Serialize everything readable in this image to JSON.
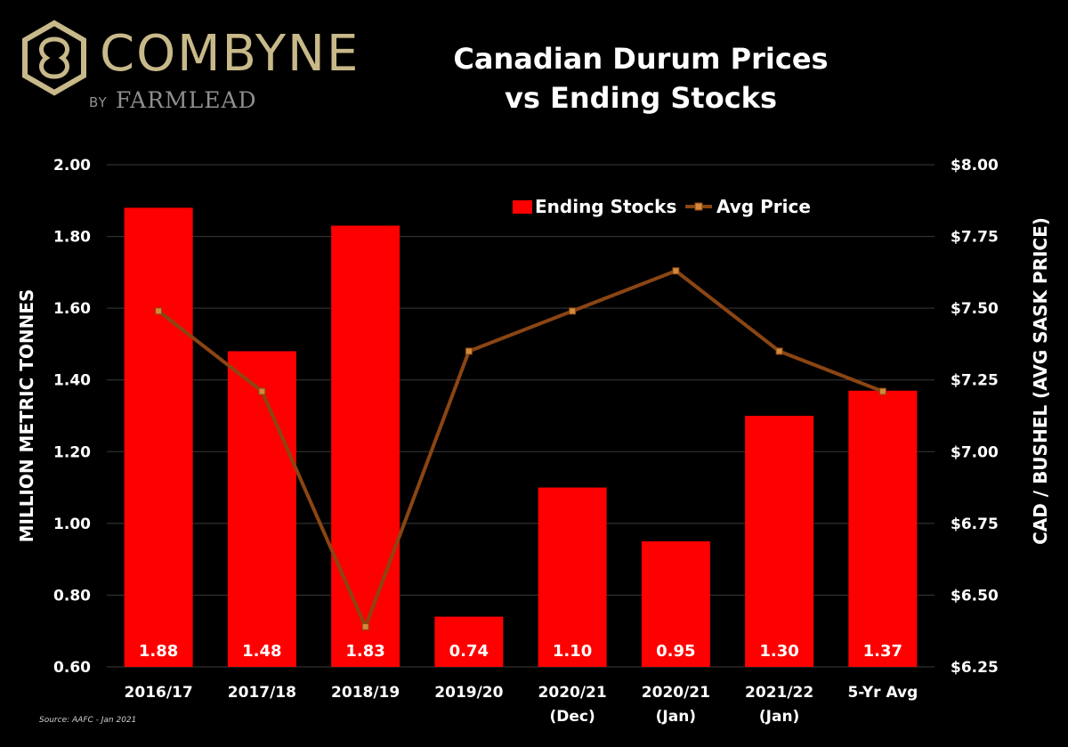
{
  "brand": {
    "name": "COMBYNE",
    "by": "BY",
    "partner": "FARMLEAD",
    "color": "#c8b98a"
  },
  "chart_data": {
    "type": "bar+line",
    "title_line1": "Canadian Durum Prices",
    "title_line2": "vs Ending Stocks",
    "categories": [
      [
        "2016/17"
      ],
      [
        "2017/18"
      ],
      [
        "2018/19"
      ],
      [
        "2019/20"
      ],
      [
        "2020/21",
        "(Dec)"
      ],
      [
        "2020/21",
        "(Jan)"
      ],
      [
        "2021/22",
        "(Jan)"
      ],
      [
        "5-Yr Avg"
      ]
    ],
    "series": [
      {
        "name": "Ending Stocks",
        "type": "bar",
        "axis": "left",
        "color": "#ff0000",
        "values": [
          1.88,
          1.48,
          1.83,
          0.74,
          1.1,
          0.95,
          1.3,
          1.37
        ],
        "labels": [
          "1.88",
          "1.48",
          "1.83",
          "0.74",
          "1.10",
          "0.95",
          "1.30",
          "1.37"
        ]
      },
      {
        "name": "Avg Price",
        "type": "line",
        "axis": "right",
        "color": "#8b4513",
        "values": [
          7.49,
          7.21,
          6.39,
          7.35,
          7.49,
          7.63,
          7.35,
          7.21
        ]
      }
    ],
    "y_left": {
      "label": "MILLION METRIC TONNES",
      "min": 0.6,
      "max": 2.0,
      "ticks": [
        "0.60",
        "0.80",
        "1.00",
        "1.20",
        "1.40",
        "1.60",
        "1.80",
        "2.00"
      ]
    },
    "y_right": {
      "label": "CAD / BUSHEL (AVG SASK PRICE)",
      "min": 6.25,
      "max": 8.0,
      "ticks": [
        "$6.25",
        "$6.50",
        "$6.75",
        "$7.00",
        "$7.25",
        "$7.50",
        "$7.75",
        "$8.00"
      ]
    },
    "grid": true,
    "legend": "top-center"
  },
  "source": "Source: AAFC - Jan 2021"
}
